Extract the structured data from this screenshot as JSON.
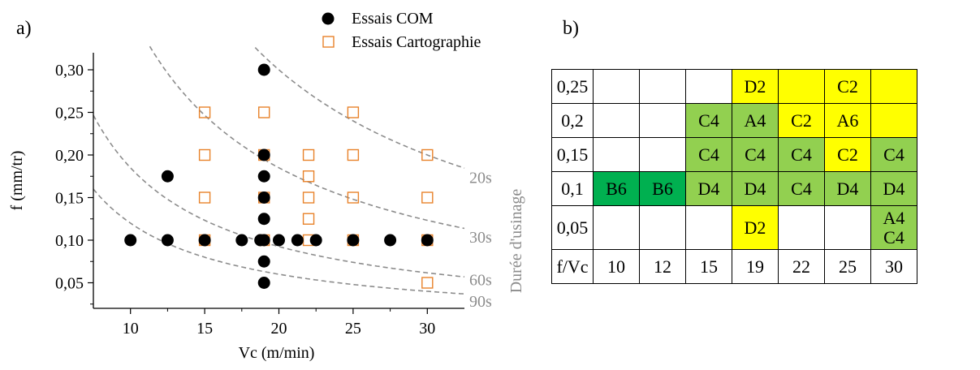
{
  "panel_a_label": "a)",
  "panel_b_label": "b)",
  "chart_data": {
    "type": "scatter",
    "xlabel": "Vc (m/min)",
    "ylabel": "f (mm/tr)",
    "xlim": [
      7.5,
      32.5
    ],
    "ylim": [
      0.02,
      0.32
    ],
    "xticks": [
      "10",
      "15",
      "20",
      "25",
      "30"
    ],
    "yticks": [
      "0,05",
      "0,10",
      "0,15",
      "0,20",
      "0,25",
      "0,30"
    ],
    "xtick_values": [
      10,
      15,
      20,
      25,
      30
    ],
    "ytick_values": [
      0.05,
      0.1,
      0.15,
      0.2,
      0.25,
      0.3
    ],
    "grid": false,
    "legend_position": "top-right",
    "series": [
      {
        "name": "Essais COM",
        "marker": "filled-circle",
        "color": "#000000",
        "points": [
          [
            10,
            0.1
          ],
          [
            12.5,
            0.1
          ],
          [
            12.5,
            0.175
          ],
          [
            15,
            0.1
          ],
          [
            17.5,
            0.1
          ],
          [
            18.75,
            0.1
          ],
          [
            19,
            0.05
          ],
          [
            19,
            0.075
          ],
          [
            19,
            0.1
          ],
          [
            19,
            0.125
          ],
          [
            19,
            0.15
          ],
          [
            19,
            0.175
          ],
          [
            19,
            0.2
          ],
          [
            19,
            0.3
          ],
          [
            20,
            0.1
          ],
          [
            21.25,
            0.1
          ],
          [
            22.5,
            0.1
          ],
          [
            25,
            0.1
          ],
          [
            27.5,
            0.1
          ],
          [
            30,
            0.1
          ]
        ]
      },
      {
        "name": "Essais Cartographie",
        "marker": "open-square",
        "color": "#e8822a",
        "points": [
          [
            15,
            0.25
          ],
          [
            15,
            0.2
          ],
          [
            15,
            0.15
          ],
          [
            15,
            0.1
          ],
          [
            19,
            0.25
          ],
          [
            19,
            0.2
          ],
          [
            19,
            0.15
          ],
          [
            19,
            0.1
          ],
          [
            22,
            0.2
          ],
          [
            22,
            0.175
          ],
          [
            22,
            0.15
          ],
          [
            22,
            0.125
          ],
          [
            22,
            0.1
          ],
          [
            25,
            0.25
          ],
          [
            25,
            0.2
          ],
          [
            25,
            0.15
          ],
          [
            25,
            0.1
          ],
          [
            30,
            0.2
          ],
          [
            30,
            0.15
          ],
          [
            30,
            0.1
          ],
          [
            30,
            0.05
          ]
        ]
      }
    ],
    "curves_title": "Durée d'usinage",
    "curves": [
      {
        "label": "20s",
        "k": 6.0
      },
      {
        "label": "30s",
        "k": 3.7
      },
      {
        "label": "60s",
        "k": 1.85
      },
      {
        "label": "90s",
        "k": 1.2
      }
    ],
    "curve_color": "#8c8c8c"
  },
  "table": {
    "rows": [
      {
        "f": "0,25",
        "cells": [
          "",
          "",
          "",
          "D2",
          "",
          "C2",
          ""
        ],
        "colors": [
          "",
          "",
          "",
          "yellow",
          "yellow",
          "yellow",
          "yellow"
        ]
      },
      {
        "f": "0,2",
        "cells": [
          "",
          "",
          "C4",
          "A4",
          "C2",
          "A6",
          ""
        ],
        "colors": [
          "",
          "",
          "green",
          "green",
          "yellow",
          "yellow",
          "yellow"
        ]
      },
      {
        "f": "0,15",
        "cells": [
          "",
          "",
          "C4",
          "C4",
          "C4",
          "C2",
          "C4"
        ],
        "colors": [
          "",
          "",
          "green",
          "green",
          "green",
          "yellow",
          "green"
        ]
      },
      {
        "f": "0,1",
        "cells": [
          "B6",
          "B6",
          "D4",
          "D4",
          "C4",
          "D4",
          "D4"
        ],
        "colors": [
          "dark",
          "dark",
          "green",
          "green",
          "green",
          "green",
          "green"
        ]
      },
      {
        "f": "0,05",
        "cells": [
          "",
          "",
          "",
          "D2",
          "",
          "",
          "A4\nC4"
        ],
        "colors": [
          "",
          "",
          "",
          "yellow",
          "",
          "",
          "green"
        ]
      }
    ],
    "footer_head": "f/Vc",
    "vc_values": [
      "10",
      "12",
      "15",
      "19",
      "22",
      "25",
      "30"
    ]
  }
}
